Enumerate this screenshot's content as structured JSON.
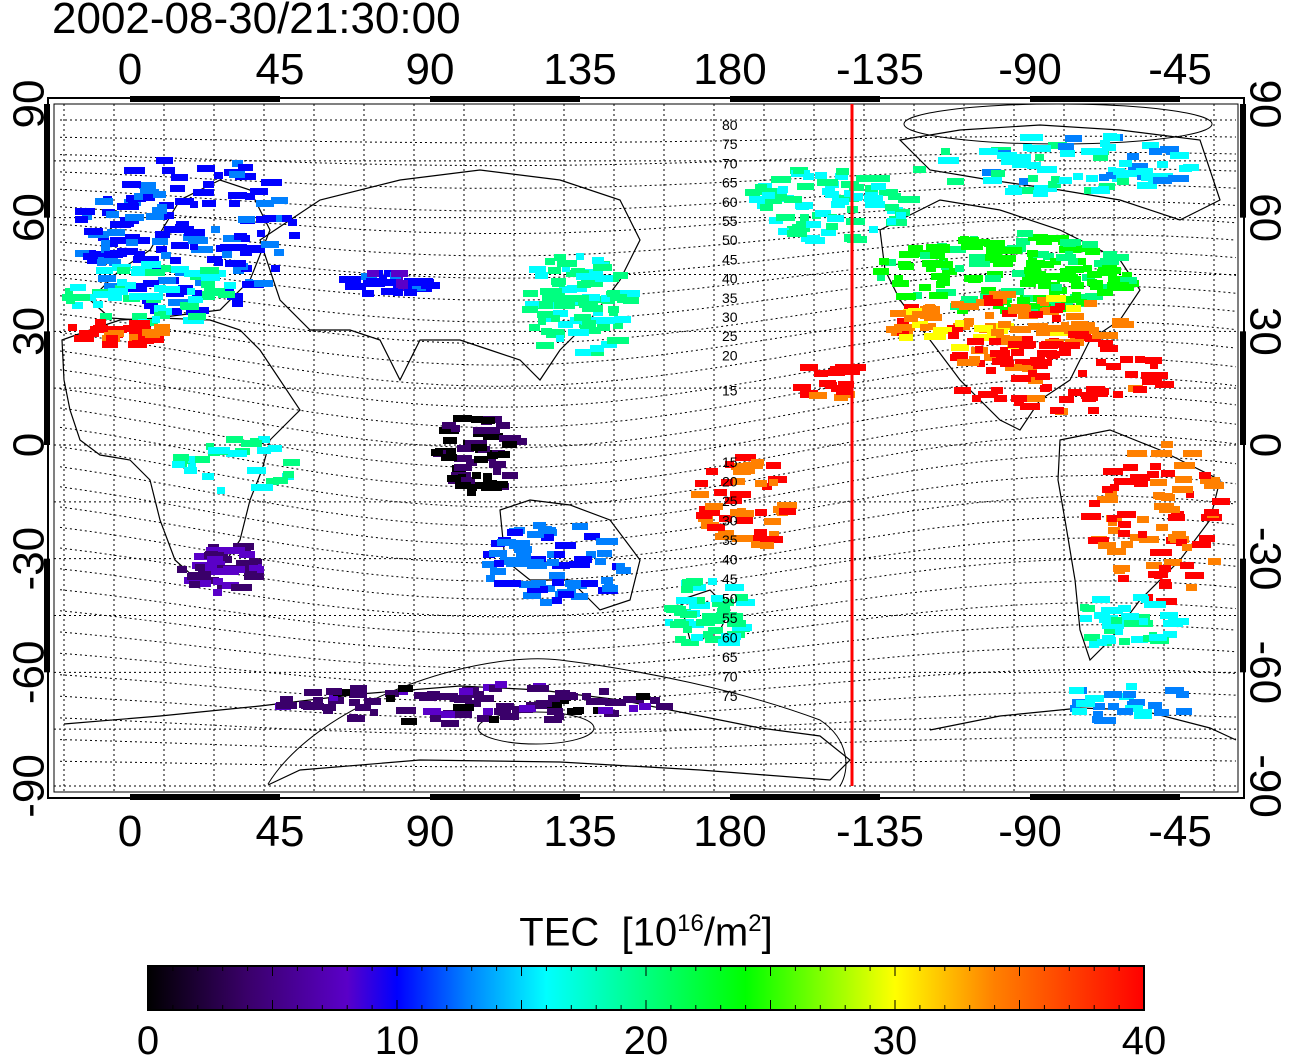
{
  "title": "2002-08-30/21:30:00",
  "map": {
    "lon_ticks": [
      "0",
      "45",
      "90",
      "135",
      "180",
      "-135",
      "-90",
      "-45"
    ],
    "lat_ticks": [
      "90",
      "60",
      "30",
      "0",
      "-30",
      "-60",
      "-90"
    ],
    "contour_labels_north": [
      "80",
      "75",
      "70",
      "65",
      "60",
      "55",
      "50",
      "45",
      "40",
      "35",
      "30",
      "25",
      "20",
      "15"
    ],
    "contour_labels_south": [
      "15",
      "20",
      "25",
      "30",
      "35",
      "40",
      "45",
      "50",
      "55",
      "60",
      "65",
      "70",
      "75"
    ],
    "terminator_line": "#ff0000"
  },
  "colorbar": {
    "label_prefix": "TEC",
    "label_units": "[10",
    "label_exp": "16",
    "label_mid": "/m",
    "label_exp2": "2",
    "label_end": "]",
    "ticks": [
      "0",
      "10",
      "20",
      "30",
      "40"
    ],
    "range": [
      0,
      40
    ],
    "colors": [
      "#000000",
      "#3a006a",
      "#5a00c8",
      "#0000ff",
      "#0080ff",
      "#00ffff",
      "#00ff80",
      "#00ff00",
      "#ffff00",
      "#ff8000",
      "#ff0000"
    ]
  }
}
